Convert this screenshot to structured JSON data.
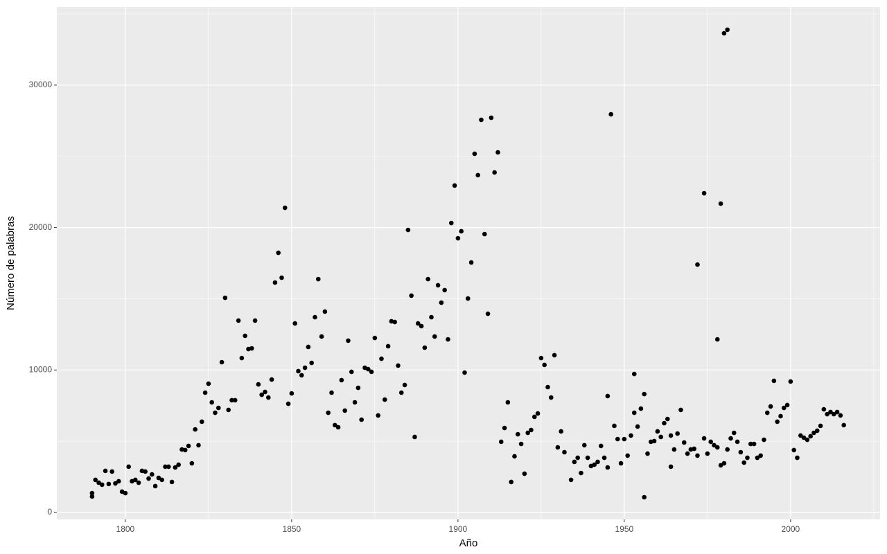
{
  "chart_data": {
    "type": "scatter",
    "x_label": "Año",
    "y_label": "Número de palabras",
    "color": "#000000",
    "grid": true,
    "panel_color": "#ebebeb",
    "xlim": [
      1779.4,
      2026.9
    ],
    "ylim": [
      -486,
      35489
    ],
    "xticks": [
      1800,
      1850,
      1900,
      1950,
      2000
    ],
    "yticks": [
      0,
      10000,
      20000,
      30000
    ],
    "x": [
      1790,
      1790,
      1791,
      1792,
      1793,
      1794,
      1795,
      1796,
      1797,
      1798,
      1799,
      1800,
      1801,
      1802,
      1803,
      1804,
      1805,
      1806,
      1807,
      1808,
      1809,
      1810,
      1811,
      1812,
      1813,
      1814,
      1815,
      1816,
      1817,
      1818,
      1819,
      1820,
      1821,
      1822,
      1823,
      1824,
      1825,
      1826,
      1827,
      1828,
      1829,
      1830,
      1831,
      1832,
      1833,
      1834,
      1835,
      1836,
      1837,
      1838,
      1839,
      1840,
      1841,
      1842,
      1843,
      1844,
      1845,
      1846,
      1847,
      1848,
      1849,
      1850,
      1851,
      1852,
      1853,
      1854,
      1855,
      1856,
      1857,
      1858,
      1859,
      1860,
      1861,
      1862,
      1863,
      1864,
      1865,
      1866,
      1867,
      1868,
      1869,
      1870,
      1871,
      1872,
      1873,
      1874,
      1875,
      1876,
      1877,
      1878,
      1879,
      1880,
      1881,
      1882,
      1883,
      1884,
      1885,
      1886,
      1887,
      1888,
      1889,
      1890,
      1891,
      1892,
      1893,
      1894,
      1895,
      1896,
      1897,
      1898,
      1899,
      1900,
      1901,
      1902,
      1903,
      1904,
      1905,
      1906,
      1907,
      1908,
      1909,
      1910,
      1911,
      1912,
      1913,
      1914,
      1915,
      1916,
      1917,
      1918,
      1919,
      1920,
      1921,
      1922,
      1923,
      1924,
      1925,
      1926,
      1927,
      1928,
      1929,
      1930,
      1931,
      1932,
      1934,
      1935,
      1936,
      1937,
      1938,
      1939,
      1940,
      1941,
      1942,
      1943,
      1944,
      1945,
      1945,
      1946,
      1947,
      1948,
      1949,
      1950,
      1951,
      1952,
      1953,
      1953,
      1954,
      1955,
      1956,
      1956,
      1957,
      1958,
      1959,
      1960,
      1961,
      1962,
      1963,
      1964,
      1964,
      1965,
      1966,
      1967,
      1968,
      1969,
      1970,
      1971,
      1972,
      1972,
      1974,
      1974,
      1975,
      1976,
      1977,
      1978,
      1978,
      1979,
      1979,
      1980,
      1981,
      1980,
      1981,
      1982,
      1983,
      1984,
      1985,
      1986,
      1987,
      1988,
      1989,
      1990,
      1991,
      1992,
      1993,
      1994,
      1995,
      1996,
      1997,
      1998,
      1999,
      2000,
      2001,
      2002,
      2003,
      2004,
      2005,
      2006,
      2007,
      2008,
      2009,
      2010,
      2011,
      2012,
      2013,
      2014,
      2015,
      2016
    ],
    "y": [
      1120,
      1360,
      2290,
      2090,
      1950,
      2920,
      2000,
      2870,
      2040,
      2190,
      1460,
      1360,
      3210,
      2190,
      2290,
      2090,
      2920,
      2870,
      2380,
      2670,
      1850,
      2430,
      2290,
      3210,
      3210,
      2140,
      3160,
      3350,
      4420,
      4380,
      4670,
      3450,
      5830,
      4720,
      6370,
      8410,
      9040,
      7730,
      7000,
      7340,
      10550,
      15070,
      7200,
      7880,
      7880,
      13470,
      10840,
      12400,
      11470,
      11520,
      13470,
      8990,
      8260,
      8460,
      8070,
      9330,
      16140,
      18230,
      16480,
      21390,
      7630,
      8360,
      13270,
      9920,
      9630,
      10160,
      11620,
      10500,
      13710,
      16380,
      12350,
      14100,
      7000,
      8410,
      6130,
      5980,
      9290,
      7150,
      12060,
      9870,
      7730,
      8750,
      6510,
      10160,
      10060,
      9870,
      12250,
      6810,
      10790,
      7920,
      11670,
      13420,
      13370,
      10310,
      8410,
      8950,
      19830,
      15220,
      5300,
      13270,
      13080,
      11570,
      16380,
      13710,
      12350,
      15950,
      14730,
      15610,
      12150,
      20320,
      22950,
      19250,
      19740,
      9820,
      15020,
      17550,
      25180,
      23680,
      27560,
      19540,
      13950,
      27710,
      23870,
      25280,
      4960,
      5930,
      7730,
      2140,
      3940,
      5490,
      4810,
      2720,
      5590,
      5790,
      6710,
      6950,
      10840,
      10360,
      8800,
      8070,
      11040,
      4570,
      5690,
      4230,
      2290,
      3550,
      3840,
      2770,
      4720,
      3840,
      3260,
      3350,
      3550,
      4670,
      3840,
      3160,
      8170,
      27950,
      6080,
      5150,
      3450,
      5150,
      3990,
      5400,
      9720,
      7000,
      6030,
      7290,
      8310,
      1070,
      4130,
      4960,
      5010,
      5690,
      5300,
      6270,
      6560,
      5400,
      3210,
      4420,
      5540,
      7200,
      4910,
      4130,
      4420,
      4470,
      17400,
      3990,
      22410,
      5200,
      4130,
      4960,
      4720,
      12150,
      4570,
      21680,
      3310,
      33640,
      33890,
      3450,
      4420,
      5200,
      5590,
      4960,
      4230,
      3500,
      3840,
      4810,
      4810,
      3840,
      3990,
      5100,
      7000,
      7440,
      9240,
      6370,
      6760,
      7340,
      7540,
      9190,
      4380,
      3840,
      5400,
      5250,
      5100,
      5350,
      5590,
      5740,
      6080,
      7240,
      6900,
      7050,
      6900,
      7050,
      6810,
      6130
    ]
  }
}
